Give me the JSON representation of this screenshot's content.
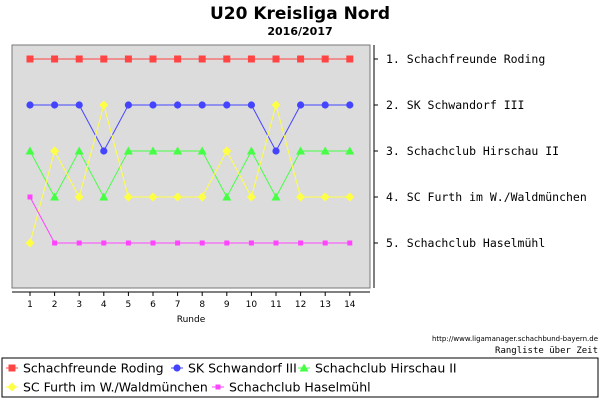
{
  "chart_data": {
    "type": "line",
    "title": "U20 Kreisliga Nord",
    "subtitle": "2016/2017",
    "xlabel": "Runde",
    "ylabel": "",
    "x": [
      1,
      2,
      3,
      4,
      5,
      6,
      7,
      8,
      9,
      10,
      11,
      12,
      13,
      14
    ],
    "ylim": [
      0,
      6
    ],
    "y_inverted": true,
    "grid": false,
    "legend_position": "bottom",
    "right_axis_labels": [
      "1. Schachfreunde Roding",
      "2. SK Schwandorf III",
      "3. Schachclub Hirschau II",
      "4. SC Furth im W./Waldmünchen",
      "5. Schachclub Haselmühl"
    ],
    "series": [
      {
        "name": "Schachfreunde Roding",
        "color": "#ff4444",
        "marker": "square",
        "values": [
          1,
          1,
          1,
          1,
          1,
          1,
          1,
          1,
          1,
          1,
          1,
          1,
          1,
          1
        ]
      },
      {
        "name": "SK Schwandorf III",
        "color": "#4444ff",
        "marker": "circle",
        "values": [
          2,
          2,
          2,
          3,
          2,
          2,
          2,
          2,
          2,
          2,
          3,
          2,
          2,
          2
        ]
      },
      {
        "name": "Schachclub Hirschau II",
        "color": "#44ff44",
        "marker": "triangle",
        "values": [
          3,
          4,
          3,
          4,
          3,
          3,
          3,
          3,
          4,
          3,
          4,
          3,
          3,
          3
        ]
      },
      {
        "name": "SC Furth im W./Waldmünchen",
        "color": "#ffff44",
        "marker": "diamond",
        "values": [
          5,
          3,
          4,
          2,
          4,
          4,
          4,
          4,
          3,
          4,
          2,
          4,
          4,
          4
        ]
      },
      {
        "name": "Schachclub Haselmühl",
        "color": "#ff44ff",
        "marker": "square-small",
        "values": [
          4,
          5,
          5,
          5,
          5,
          5,
          5,
          5,
          5,
          5,
          5,
          5,
          5,
          5
        ]
      }
    ]
  },
  "footer": {
    "url": "http://www.ligamanager.schachbund-bayern.de",
    "caption": "Rangliste über Zeit"
  }
}
